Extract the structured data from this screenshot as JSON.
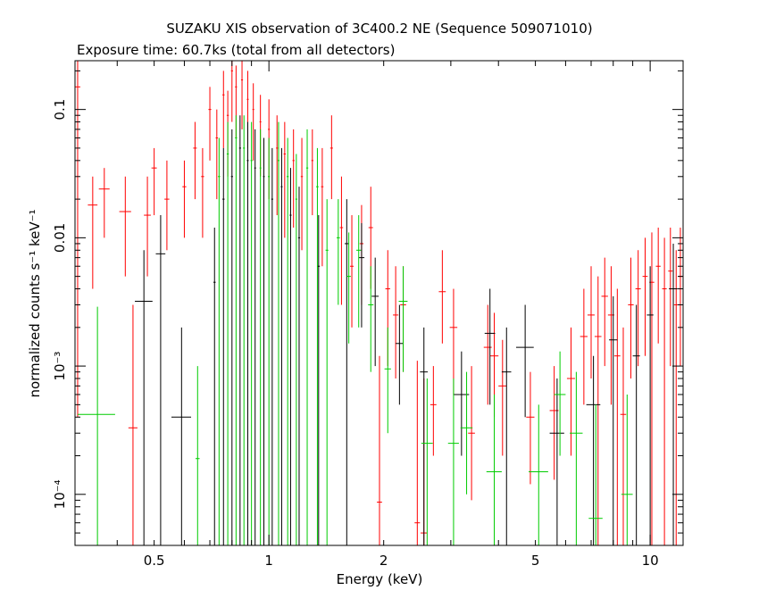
{
  "chart_data": {
    "type": "scatter",
    "title": "SUZAKU XIS observation of 3C400.2 NE (Sequence 509071010)",
    "subtitle": "Exposure time: 60.7ks (total from all detectors)",
    "xlabel": "Energy (keV)",
    "ylabel": "normalized counts s⁻¹ keV⁻¹",
    "x_scale": "log",
    "y_scale": "log",
    "xlim": [
      0.31,
      12.2
    ],
    "ylim": [
      4e-05,
      0.24
    ],
    "x_ticks": [
      {
        "value": 0.5,
        "label": "0.5"
      },
      {
        "value": 1,
        "label": "1"
      },
      {
        "value": 2,
        "label": "2"
      },
      {
        "value": 5,
        "label": "5"
      },
      {
        "value": 10,
        "label": "10"
      }
    ],
    "y_ticks": [
      {
        "value": 0.1,
        "label": "0.1"
      },
      {
        "value": 0.01,
        "label": "0.01"
      },
      {
        "value": 0.001,
        "label": "10⁻³"
      },
      {
        "value": 0.0001,
        "label": "10⁻⁴"
      }
    ],
    "grid": false,
    "colors": {
      "black": "#000000",
      "red": "#ff0000",
      "green": "#00cc00"
    },
    "series": [
      {
        "color": "#ff0000",
        "points": [
          {
            "x": 0.315,
            "xerr": 0.005,
            "y": 0.15,
            "ylo": 0.0004,
            "yhi": 0.24
          },
          {
            "x": 0.345,
            "xerr": 0.01,
            "y": 0.018,
            "ylo": 0.004,
            "yhi": 0.03
          },
          {
            "x": 0.37,
            "xerr": 0.012,
            "y": 0.024,
            "ylo": 0.01,
            "yhi": 0.035
          },
          {
            "x": 0.42,
            "xerr": 0.015,
            "y": 0.016,
            "ylo": 0.005,
            "yhi": 0.03
          },
          {
            "x": 0.44,
            "xerr": 0.012,
            "y": 0.00033,
            "ylo": 4e-05,
            "yhi": 0.003
          },
          {
            "x": 0.48,
            "xerr": 0.01,
            "y": 0.015,
            "ylo": 0.005,
            "yhi": 0.03
          },
          {
            "x": 0.5,
            "xerr": 0.008,
            "y": 0.035,
            "ylo": 0.015,
            "yhi": 0.05
          },
          {
            "x": 0.54,
            "xerr": 0.008,
            "y": 0.02,
            "ylo": 0.008,
            "yhi": 0.04
          },
          {
            "x": 0.6,
            "xerr": 0.007,
            "y": 0.025,
            "ylo": 0.01,
            "yhi": 0.04
          },
          {
            "x": 0.64,
            "xerr": 0.007,
            "y": 0.05,
            "ylo": 0.02,
            "yhi": 0.08
          },
          {
            "x": 0.67,
            "xerr": 0.006,
            "y": 0.03,
            "ylo": 0.01,
            "yhi": 0.05
          },
          {
            "x": 0.7,
            "xerr": 0.006,
            "y": 0.1,
            "ylo": 0.04,
            "yhi": 0.15
          },
          {
            "x": 0.73,
            "xerr": 0.005,
            "y": 0.06,
            "ylo": 0.02,
            "yhi": 0.1
          },
          {
            "x": 0.76,
            "xerr": 0.005,
            "y": 0.13,
            "ylo": 0.05,
            "yhi": 0.2
          },
          {
            "x": 0.78,
            "xerr": 0.005,
            "y": 0.09,
            "ylo": 0.03,
            "yhi": 0.14
          },
          {
            "x": 0.8,
            "xerr": 0.005,
            "y": 0.2,
            "ylo": 0.08,
            "yhi": 0.24
          },
          {
            "x": 0.82,
            "xerr": 0.005,
            "y": 0.15,
            "ylo": 0.06,
            "yhi": 0.22
          },
          {
            "x": 0.85,
            "xerr": 0.005,
            "y": 0.17,
            "ylo": 0.07,
            "yhi": 0.24
          },
          {
            "x": 0.88,
            "xerr": 0.005,
            "y": 0.12,
            "ylo": 0.05,
            "yhi": 0.2
          },
          {
            "x": 0.91,
            "xerr": 0.005,
            "y": 0.1,
            "ylo": 0.04,
            "yhi": 0.16
          },
          {
            "x": 0.95,
            "xerr": 0.005,
            "y": 0.08,
            "ylo": 0.03,
            "yhi": 0.13
          },
          {
            "x": 1.0,
            "xerr": 0.006,
            "y": 0.07,
            "ylo": 0.02,
            "yhi": 0.12
          },
          {
            "x": 1.05,
            "xerr": 0.006,
            "y": 0.05,
            "ylo": 0.015,
            "yhi": 0.09
          },
          {
            "x": 1.1,
            "xerr": 0.007,
            "y": 0.045,
            "ylo": 0.01,
            "yhi": 0.08
          },
          {
            "x": 1.16,
            "xerr": 0.007,
            "y": 0.04,
            "ylo": 0.012,
            "yhi": 0.07
          },
          {
            "x": 1.22,
            "xerr": 0.008,
            "y": 0.03,
            "ylo": 0.008,
            "yhi": 0.06
          },
          {
            "x": 1.3,
            "xerr": 0.008,
            "y": 0.04,
            "ylo": 0.015,
            "yhi": 0.07
          },
          {
            "x": 1.38,
            "xerr": 0.01,
            "y": 0.025,
            "ylo": 0.006,
            "yhi": 0.05
          },
          {
            "x": 1.46,
            "xerr": 0.012,
            "y": 0.05,
            "ylo": 0.02,
            "yhi": 0.09
          },
          {
            "x": 1.55,
            "xerr": 0.015,
            "y": 0.012,
            "ylo": 0.003,
            "yhi": 0.03
          },
          {
            "x": 1.65,
            "xerr": 0.018,
            "y": 0.006,
            "ylo": 0.002,
            "yhi": 0.015
          },
          {
            "x": 1.75,
            "xerr": 0.02,
            "y": 0.009,
            "ylo": 0.003,
            "yhi": 0.018
          },
          {
            "x": 1.85,
            "xerr": 0.025,
            "y": 0.012,
            "ylo": 0.004,
            "yhi": 0.025
          },
          {
            "x": 1.95,
            "xerr": 0.03,
            "y": 8.7e-05,
            "ylo": 4e-05,
            "yhi": 0.0012
          },
          {
            "x": 2.05,
            "xerr": 0.03,
            "y": 0.004,
            "ylo": 0.001,
            "yhi": 0.008
          },
          {
            "x": 2.15,
            "xerr": 0.035,
            "y": 0.0025,
            "ylo": 0.0008,
            "yhi": 0.006
          },
          {
            "x": 2.25,
            "xerr": 0.04,
            "y": 0.003,
            "ylo": 0.0009,
            "yhi": 0.006
          },
          {
            "x": 2.45,
            "xerr": 0.04,
            "y": 6e-05,
            "ylo": 4e-05,
            "yhi": 0.0011
          },
          {
            "x": 2.55,
            "xerr": 0.05,
            "y": 5e-05,
            "ylo": 4e-05,
            "yhi": 0.0008
          },
          {
            "x": 2.7,
            "xerr": 0.05,
            "y": 0.0005,
            "ylo": 0.0002,
            "yhi": 0.001
          },
          {
            "x": 2.85,
            "xerr": 0.06,
            "y": 0.0038,
            "ylo": 0.0015,
            "yhi": 0.008
          },
          {
            "x": 3.05,
            "xerr": 0.07,
            "y": 0.002,
            "ylo": 0.0006,
            "yhi": 0.004
          },
          {
            "x": 3.4,
            "xerr": 0.07,
            "y": 0.0003,
            "ylo": 9e-05,
            "yhi": 0.001
          },
          {
            "x": 3.75,
            "xerr": 0.09,
            "y": 0.0014,
            "ylo": 0.0005,
            "yhi": 0.003
          },
          {
            "x": 3.9,
            "xerr": 0.1,
            "y": 0.0012,
            "ylo": 0.0004,
            "yhi": 0.0026
          },
          {
            "x": 4.1,
            "xerr": 0.1,
            "y": 0.0007,
            "ylo": 0.0002,
            "yhi": 0.0016
          },
          {
            "x": 4.85,
            "xerr": 0.12,
            "y": 0.0004,
            "ylo": 0.00012,
            "yhi": 0.0009
          },
          {
            "x": 5.6,
            "xerr": 0.15,
            "y": 0.00045,
            "ylo": 0.00013,
            "yhi": 0.001
          },
          {
            "x": 6.2,
            "xerr": 0.15,
            "y": 0.0008,
            "ylo": 0.0002,
            "yhi": 0.002
          },
          {
            "x": 6.7,
            "xerr": 0.15,
            "y": 0.0017,
            "ylo": 0.0005,
            "yhi": 0.004
          },
          {
            "x": 7.0,
            "xerr": 0.15,
            "y": 0.0025,
            "ylo": 0.0008,
            "yhi": 0.006
          },
          {
            "x": 7.3,
            "xerr": 0.15,
            "y": 0.0017,
            "ylo": 4e-05,
            "yhi": 0.005
          },
          {
            "x": 7.6,
            "xerr": 0.15,
            "y": 0.0035,
            "ylo": 0.001,
            "yhi": 0.007
          },
          {
            "x": 7.9,
            "xerr": 0.15,
            "y": 0.0025,
            "ylo": 0.0005,
            "yhi": 0.006
          },
          {
            "x": 8.2,
            "xerr": 0.15,
            "y": 0.0012,
            "ylo": 4e-05,
            "yhi": 0.004
          },
          {
            "x": 8.5,
            "xerr": 0.15,
            "y": 0.00042,
            "ylo": 4e-05,
            "yhi": 0.002
          },
          {
            "x": 8.9,
            "xerr": 0.15,
            "y": 0.003,
            "ylo": 0.0008,
            "yhi": 0.007
          },
          {
            "x": 9.3,
            "xerr": 0.15,
            "y": 0.004,
            "ylo": 0.001,
            "yhi": 0.008
          },
          {
            "x": 9.7,
            "xerr": 0.15,
            "y": 0.005,
            "ylo": 0.0012,
            "yhi": 0.01
          },
          {
            "x": 10.1,
            "xerr": 0.15,
            "y": 0.0045,
            "ylo": 4e-05,
            "yhi": 0.011
          },
          {
            "x": 10.5,
            "xerr": 0.15,
            "y": 0.006,
            "ylo": 0.0015,
            "yhi": 0.012
          },
          {
            "x": 10.9,
            "xerr": 0.15,
            "y": 0.004,
            "ylo": 4e-05,
            "yhi": 0.01
          },
          {
            "x": 11.3,
            "xerr": 0.15,
            "y": 0.0055,
            "ylo": 0.001,
            "yhi": 0.012
          },
          {
            "x": 11.7,
            "xerr": 0.15,
            "y": 0.003,
            "ylo": 4e-05,
            "yhi": 0.008
          },
          {
            "x": 12.0,
            "xerr": 0.15,
            "y": 0.005,
            "ylo": 0.001,
            "yhi": 0.012
          }
        ]
      },
      {
        "color": "#000000",
        "points": [
          {
            "x": 0.47,
            "xerr": 0.025,
            "y": 0.0032,
            "ylo": 4e-05,
            "yhi": 0.008
          },
          {
            "x": 0.52,
            "xerr": 0.015,
            "y": 0.0075,
            "ylo": 4e-05,
            "yhi": 0.015
          },
          {
            "x": 0.59,
            "xerr": 0.035,
            "y": 0.0004,
            "ylo": 4e-05,
            "yhi": 0.002
          },
          {
            "x": 0.72,
            "xerr": 0.005,
            "y": 0.0045,
            "ylo": 4e-05,
            "yhi": 0.012
          },
          {
            "x": 0.76,
            "xerr": 0.005,
            "y": 0.02,
            "ylo": 4e-05,
            "yhi": 0.05
          },
          {
            "x": 0.8,
            "xerr": 0.005,
            "y": 0.03,
            "ylo": 4e-05,
            "yhi": 0.07
          },
          {
            "x": 0.84,
            "xerr": 0.005,
            "y": 0.05,
            "ylo": 4e-05,
            "yhi": 0.09
          },
          {
            "x": 0.88,
            "xerr": 0.005,
            "y": 0.04,
            "ylo": 4e-05,
            "yhi": 0.08
          },
          {
            "x": 0.92,
            "xerr": 0.005,
            "y": 0.035,
            "ylo": 4e-05,
            "yhi": 0.07
          },
          {
            "x": 0.97,
            "xerr": 0.005,
            "y": 0.03,
            "ylo": 4e-05,
            "yhi": 0.06
          },
          {
            "x": 1.02,
            "xerr": 0.006,
            "y": 0.02,
            "ylo": 4e-05,
            "yhi": 0.05
          },
          {
            "x": 1.08,
            "xerr": 0.006,
            "y": 0.025,
            "ylo": 4e-05,
            "yhi": 0.05
          },
          {
            "x": 1.14,
            "xerr": 0.007,
            "y": 0.015,
            "ylo": 4e-05,
            "yhi": 0.035
          },
          {
            "x": 1.2,
            "xerr": 0.007,
            "y": 0.01,
            "ylo": 4e-05,
            "yhi": 0.025
          },
          {
            "x": 1.35,
            "xerr": 0.01,
            "y": 0.006,
            "ylo": 4e-05,
            "yhi": 0.015
          },
          {
            "x": 1.6,
            "xerr": 0.02,
            "y": 0.009,
            "ylo": 4e-05,
            "yhi": 0.02
          },
          {
            "x": 1.75,
            "xerr": 0.03,
            "y": 0.007,
            "ylo": 0.002,
            "yhi": 0.013
          },
          {
            "x": 1.9,
            "xerr": 0.04,
            "y": 0.0035,
            "ylo": 0.001,
            "yhi": 0.007
          },
          {
            "x": 2.2,
            "xerr": 0.05,
            "y": 0.0015,
            "ylo": 0.0005,
            "yhi": 0.003
          },
          {
            "x": 2.55,
            "xerr": 0.06,
            "y": 0.0009,
            "ylo": 4e-05,
            "yhi": 0.002
          },
          {
            "x": 3.2,
            "xerr": 0.15,
            "y": 0.0006,
            "ylo": 0.0002,
            "yhi": 0.0013
          },
          {
            "x": 3.8,
            "xerr": 0.12,
            "y": 0.0018,
            "ylo": 0.0005,
            "yhi": 0.004
          },
          {
            "x": 4.2,
            "xerr": 0.12,
            "y": 0.0009,
            "ylo": 4e-05,
            "yhi": 0.002
          },
          {
            "x": 4.7,
            "xerr": 0.25,
            "y": 0.0014,
            "ylo": 0.0004,
            "yhi": 0.003
          },
          {
            "x": 5.7,
            "xerr": 0.25,
            "y": 0.0003,
            "ylo": 4e-05,
            "yhi": 0.0008
          },
          {
            "x": 7.1,
            "xerr": 0.3,
            "y": 0.0005,
            "ylo": 4e-05,
            "yhi": 0.0012
          },
          {
            "x": 8.0,
            "xerr": 0.2,
            "y": 0.0016,
            "ylo": 4e-05,
            "yhi": 0.0035
          },
          {
            "x": 9.2,
            "xerr": 0.2,
            "y": 0.0012,
            "ylo": 4e-05,
            "yhi": 0.003
          },
          {
            "x": 10.0,
            "xerr": 0.2,
            "y": 0.0025,
            "ylo": 4e-05,
            "yhi": 0.006
          },
          {
            "x": 11.5,
            "xerr": 0.3,
            "y": 0.004,
            "ylo": 4e-05,
            "yhi": 0.009
          }
        ]
      },
      {
        "color": "#00cc00",
        "points": [
          {
            "x": 0.355,
            "xerr": 0.04,
            "y": 0.00042,
            "ylo": 4e-05,
            "yhi": 0.0029
          },
          {
            "x": 0.65,
            "xerr": 0.008,
            "y": 0.00019,
            "ylo": 4e-05,
            "yhi": 0.001
          },
          {
            "x": 0.74,
            "xerr": 0.005,
            "y": 0.03,
            "ylo": 4e-05,
            "yhi": 0.06
          },
          {
            "x": 0.78,
            "xerr": 0.005,
            "y": 0.045,
            "ylo": 4e-05,
            "yhi": 0.08
          },
          {
            "x": 0.82,
            "xerr": 0.005,
            "y": 0.06,
            "ylo": 4e-05,
            "yhi": 0.09
          },
          {
            "x": 0.86,
            "xerr": 0.005,
            "y": 0.05,
            "ylo": 4e-05,
            "yhi": 0.09
          },
          {
            "x": 0.9,
            "xerr": 0.005,
            "y": 0.04,
            "ylo": 4e-05,
            "yhi": 0.08
          },
          {
            "x": 0.95,
            "xerr": 0.005,
            "y": 0.035,
            "ylo": 4e-05,
            "yhi": 0.07
          },
          {
            "x": 1.0,
            "xerr": 0.006,
            "y": 0.03,
            "ylo": 4e-05,
            "yhi": 0.06
          },
          {
            "x": 1.06,
            "xerr": 0.006,
            "y": 0.04,
            "ylo": 4e-05,
            "yhi": 0.08
          },
          {
            "x": 1.12,
            "xerr": 0.007,
            "y": 0.03,
            "ylo": 4e-05,
            "yhi": 0.06
          },
          {
            "x": 1.18,
            "xerr": 0.007,
            "y": 0.02,
            "ylo": 4e-05,
            "yhi": 0.045
          },
          {
            "x": 1.26,
            "xerr": 0.008,
            "y": 0.035,
            "ylo": 4e-05,
            "yhi": 0.07
          },
          {
            "x": 1.34,
            "xerr": 0.01,
            "y": 0.025,
            "ylo": 4e-05,
            "yhi": 0.05
          },
          {
            "x": 1.42,
            "xerr": 0.012,
            "y": 0.008,
            "ylo": 4e-05,
            "yhi": 0.02
          },
          {
            "x": 1.52,
            "xerr": 0.015,
            "y": 0.01,
            "ylo": 0.003,
            "yhi": 0.02
          },
          {
            "x": 1.62,
            "xerr": 0.02,
            "y": 0.005,
            "ylo": 0.0015,
            "yhi": 0.011
          },
          {
            "x": 1.72,
            "xerr": 0.025,
            "y": 0.008,
            "ylo": 0.002,
            "yhi": 0.015
          },
          {
            "x": 1.85,
            "xerr": 0.03,
            "y": 0.003,
            "ylo": 0.0009,
            "yhi": 0.006
          },
          {
            "x": 2.05,
            "xerr": 0.04,
            "y": 0.00095,
            "ylo": 0.0003,
            "yhi": 0.002
          },
          {
            "x": 2.25,
            "xerr": 0.06,
            "y": 0.0032,
            "ylo": 0.0009,
            "yhi": 0.006
          },
          {
            "x": 2.6,
            "xerr": 0.09,
            "y": 0.00025,
            "ylo": 4e-05,
            "yhi": 0.0008
          },
          {
            "x": 3.05,
            "xerr": 0.1,
            "y": 0.00025,
            "ylo": 4e-05,
            "yhi": 0.0008
          },
          {
            "x": 3.3,
            "xerr": 0.12,
            "y": 0.00033,
            "ylo": 0.0001,
            "yhi": 0.0009
          },
          {
            "x": 3.9,
            "xerr": 0.18,
            "y": 0.00015,
            "ylo": 4e-05,
            "yhi": 0.0006
          },
          {
            "x": 5.1,
            "xerr": 0.3,
            "y": 0.00015,
            "ylo": 4e-05,
            "yhi": 0.0005
          },
          {
            "x": 5.8,
            "xerr": 0.2,
            "y": 0.0006,
            "ylo": 0.0002,
            "yhi": 0.0013
          },
          {
            "x": 6.4,
            "xerr": 0.25,
            "y": 0.0003,
            "ylo": 4e-05,
            "yhi": 0.0009
          },
          {
            "x": 7.2,
            "xerr": 0.3,
            "y": 6.5e-05,
            "ylo": 4e-05,
            "yhi": 0.0005
          },
          {
            "x": 8.7,
            "xerr": 0.3,
            "y": 0.0001,
            "ylo": 4e-05,
            "yhi": 0.0006
          }
        ]
      }
    ]
  }
}
